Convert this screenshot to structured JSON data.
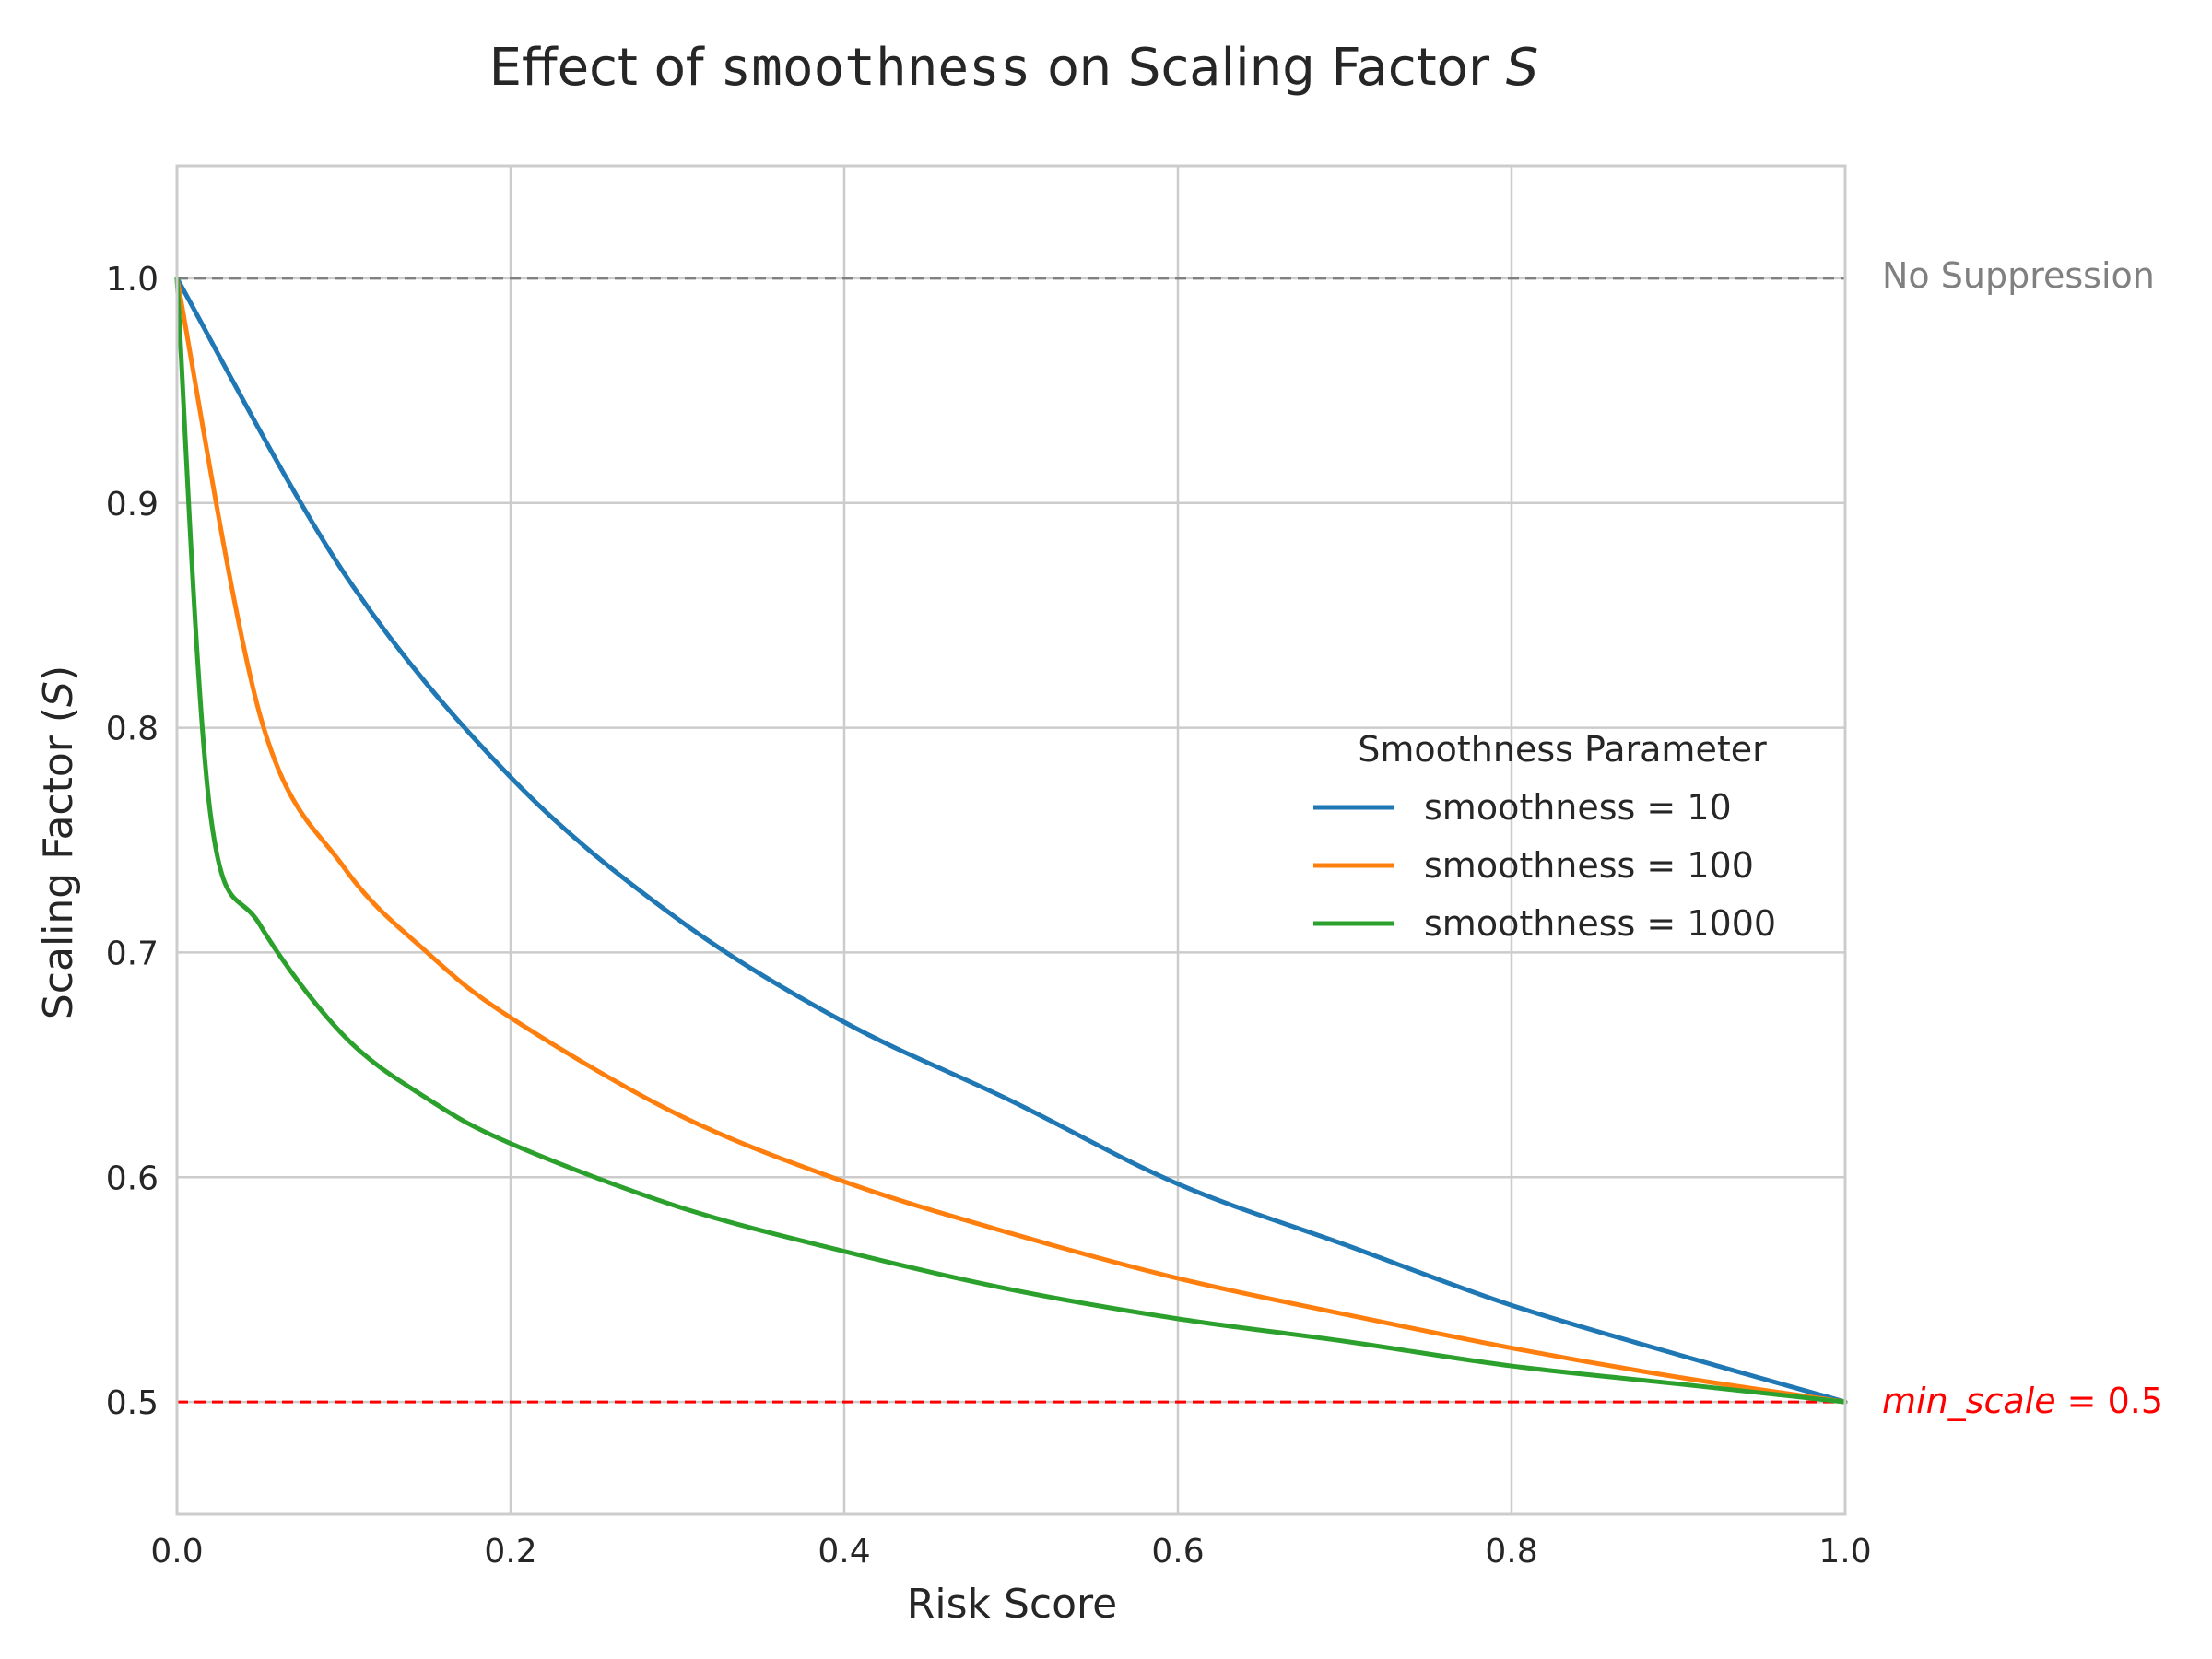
{
  "chart_data": {
    "type": "line",
    "title": {
      "prefix": "Effect of ",
      "code": "smoothness",
      "middle": " on Scaling Factor ",
      "var": "S"
    },
    "xlabel": "Risk Score",
    "ylabel": {
      "prefix": "Scaling Factor (",
      "var": "S",
      "suffix": ")"
    },
    "xlim": [
      0.0,
      1.0
    ],
    "ylim": [
      0.45,
      1.05
    ],
    "xticks": [
      0.0,
      0.2,
      0.4,
      0.6,
      0.8,
      1.0
    ],
    "yticks": [
      0.5,
      0.6,
      0.7,
      0.8,
      0.9,
      1.0
    ],
    "grid": true,
    "legend": {
      "title": "Smoothness Parameter",
      "placement": "center-right"
    },
    "min_scale": 0.5,
    "series": [
      {
        "name": "smoothness = 10",
        "smoothness": 10,
        "color": "#1f77b4",
        "points": [
          [
            0.0,
            1.0
          ],
          [
            0.1,
            0.869
          ],
          [
            0.2,
            0.778
          ],
          [
            0.3,
            0.715
          ],
          [
            0.4,
            0.669
          ],
          [
            0.5,
            0.634
          ],
          [
            0.6,
            0.597
          ],
          [
            0.7,
            0.57
          ],
          [
            0.8,
            0.543
          ],
          [
            0.9,
            0.521
          ],
          [
            1.0,
            0.5
          ]
        ]
      },
      {
        "name": "smoothness = 100",
        "smoothness": 100,
        "color": "#ff7f0e",
        "points": [
          [
            0.0,
            1.0
          ],
          [
            0.05,
            0.805
          ],
          [
            0.1,
            0.738
          ],
          [
            0.15,
            0.7
          ],
          [
            0.2,
            0.671
          ],
          [
            0.3,
            0.628
          ],
          [
            0.4,
            0.598
          ],
          [
            0.5,
            0.575
          ],
          [
            0.6,
            0.555
          ],
          [
            0.7,
            0.539
          ],
          [
            0.8,
            0.524
          ],
          [
            0.9,
            0.511
          ],
          [
            1.0,
            0.5
          ]
        ]
      },
      {
        "name": "smoothness = 1000",
        "smoothness": 1000,
        "color": "#2ca02c",
        "points": [
          [
            0.0,
            1.0
          ],
          [
            0.02,
            0.762
          ],
          [
            0.05,
            0.712
          ],
          [
            0.1,
            0.663
          ],
          [
            0.15,
            0.635
          ],
          [
            0.2,
            0.615
          ],
          [
            0.3,
            0.587
          ],
          [
            0.4,
            0.567
          ],
          [
            0.5,
            0.55
          ],
          [
            0.6,
            0.537
          ],
          [
            0.7,
            0.527
          ],
          [
            0.8,
            0.516
          ],
          [
            0.9,
            0.508
          ],
          [
            1.0,
            0.5
          ]
        ]
      }
    ],
    "reference_lines": [
      {
        "y": 1.0,
        "label": "No Suppression",
        "color": "#808080"
      },
      {
        "y": 0.5,
        "label_italic": "min_scale",
        "label_rest": " = 0.5",
        "color": "#ff0000"
      }
    ]
  }
}
